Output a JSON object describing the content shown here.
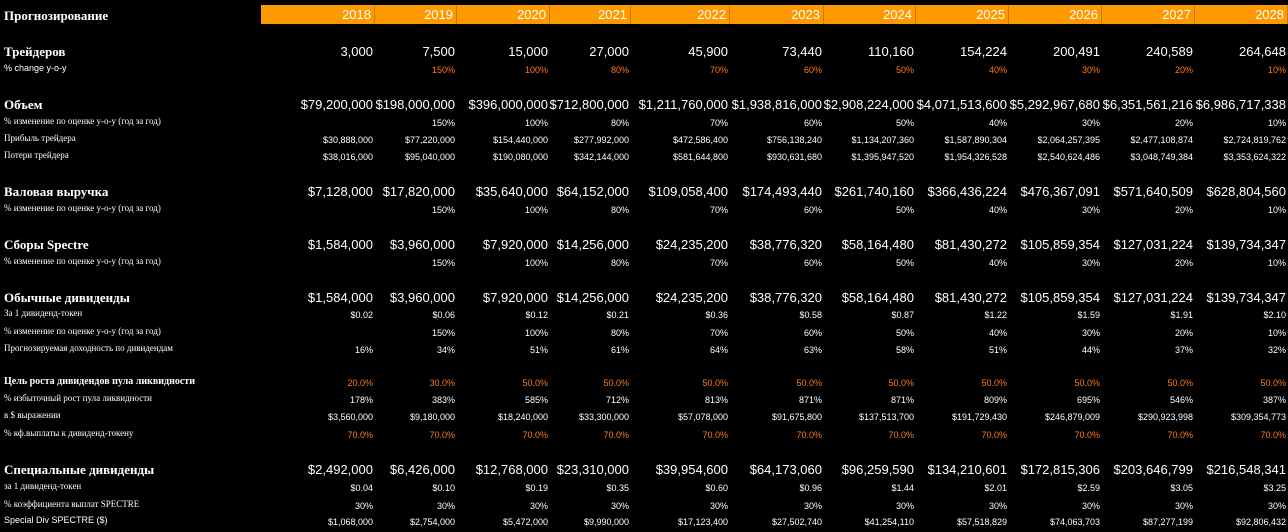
{
  "header": {
    "title": "Прогнозирование",
    "years": [
      "2018",
      "2019",
      "2020",
      "2021",
      "2022",
      "2023",
      "2024",
      "2025",
      "2026",
      "2027",
      "2028"
    ]
  },
  "sections": [
    {
      "key": "traders",
      "label": "Трейдеров",
      "style": "sect",
      "values": [
        "3,000",
        "7,500",
        "15,000",
        "27,000",
        "45,900",
        "73,440",
        "110,160",
        "154,224",
        "200,491",
        "240,589",
        "264,648"
      ]
    },
    {
      "key": "traders_change",
      "label": "% change y-o-y",
      "style": "lbl-sans",
      "tone": "orange",
      "values": [
        "",
        "150%",
        "100%",
        "80%",
        "70%",
        "60%",
        "50%",
        "40%",
        "30%",
        "20%",
        "10%"
      ]
    },
    {
      "key": "volume",
      "label": "Объем",
      "style": "sect",
      "values": [
        "$79,200,000",
        "$198,000,000",
        "$396,000,000",
        "$712,800,000",
        "$1,211,760,000",
        "$1,938,816,000",
        "$2,908,224,000",
        "$4,071,513,600",
        "$5,292,967,680",
        "$6,351,561,216",
        "$6,986,717,338"
      ]
    },
    {
      "key": "volume_change",
      "label": "% изменение по оценке y-o-y (год за год)",
      "style": "lbl-small",
      "values": [
        "",
        "150%",
        "100%",
        "80%",
        "70%",
        "60%",
        "50%",
        "40%",
        "30%",
        "20%",
        "10%"
      ]
    },
    {
      "key": "trader_profit",
      "label": "Прибыль трейдера",
      "style": "lbl-small",
      "values": [
        "$30,888,000",
        "$77,220,000",
        "$154,440,000",
        "$277,992,000",
        "$472,586,400",
        "$756,138,240",
        "$1,134,207,360",
        "$1,587,890,304",
        "$2,064,257,395",
        "$2,477,108,874",
        "$2,724,819,762"
      ]
    },
    {
      "key": "trader_loss",
      "label": "Потери трейдера",
      "style": "lbl-small",
      "values": [
        "$38,016,000",
        "$95,040,000",
        "$190,080,000",
        "$342,144,000",
        "$581,644,800",
        "$930,631,680",
        "$1,395,947,520",
        "$1,954,326,528",
        "$2,540,624,486",
        "$3,048,749,384",
        "$3,353,624,322"
      ]
    },
    {
      "key": "gross_revenue",
      "label": "Валовая выручка",
      "style": "sect",
      "values": [
        "$7,128,000",
        "$17,820,000",
        "$35,640,000",
        "$64,152,000",
        "$109,058,400",
        "$174,493,440",
        "$261,740,160",
        "$366,436,224",
        "$476,367,091",
        "$571,640,509",
        "$628,804,560"
      ]
    },
    {
      "key": "gross_change",
      "label": "% изменение по оценке y-o-y (год за год)",
      "style": "lbl-small",
      "values": [
        "",
        "150%",
        "100%",
        "80%",
        "70%",
        "60%",
        "50%",
        "40%",
        "30%",
        "20%",
        "10%"
      ]
    },
    {
      "key": "spectre_fees",
      "label": "Сборы Spectre",
      "style": "sect",
      "values": [
        "$1,584,000",
        "$3,960,000",
        "$7,920,000",
        "$14,256,000",
        "$24,235,200",
        "$38,776,320",
        "$58,164,480",
        "$81,430,272",
        "$105,859,354",
        "$127,031,224",
        "$139,734,347"
      ]
    },
    {
      "key": "fees_change",
      "label": "% изменение по оценке y-o-y (год за год)",
      "style": "lbl-small",
      "values": [
        "",
        "150%",
        "100%",
        "80%",
        "70%",
        "60%",
        "50%",
        "40%",
        "30%",
        "20%",
        "10%"
      ]
    },
    {
      "key": "regular_div",
      "label": "Обычные дивиденды",
      "style": "sect",
      "values": [
        "$1,584,000",
        "$3,960,000",
        "$7,920,000",
        "$14,256,000",
        "$24,235,200",
        "$38,776,320",
        "$58,164,480",
        "$81,430,272",
        "$105,859,354",
        "$127,031,224",
        "$139,734,347"
      ]
    },
    {
      "key": "per_token",
      "label": "За 1 дивиденд-токен",
      "style": "lbl-small",
      "values": [
        "$0.02",
        "$0.06",
        "$0.12",
        "$0.21",
        "$0.36",
        "$0.58",
        "$0.87",
        "$1.22",
        "$1.59",
        "$1.91",
        "$2.10"
      ]
    },
    {
      "key": "regdiv_change",
      "label": "% изменение по оценке y-o-y (год за год)",
      "style": "lbl-small",
      "values": [
        "",
        "150%",
        "100%",
        "80%",
        "70%",
        "60%",
        "50%",
        "40%",
        "30%",
        "20%",
        "10%"
      ]
    },
    {
      "key": "div_yield",
      "label": "Прогнозируемая доходность по дивидендам",
      "style": "lbl-small",
      "values": [
        "16%",
        "34%",
        "51%",
        "61%",
        "64%",
        "63%",
        "58%",
        "51%",
        "44%",
        "37%",
        "32%"
      ]
    },
    {
      "key": "pool_goal",
      "label": "Цель роста дивидендов пула ликвидности",
      "style": "sectsmall",
      "tone": "orange",
      "values": [
        "20.0%",
        "30.0%",
        "50.0%",
        "50.0%",
        "50.0%",
        "50.0%",
        "50.0%",
        "50.0%",
        "50.0%",
        "50.0%",
        "50.0%"
      ]
    },
    {
      "key": "excess_growth",
      "label": "% избыточный рост пула ликвидности",
      "style": "lbl-small",
      "values": [
        "178%",
        "383%",
        "585%",
        "712%",
        "813%",
        "871%",
        "871%",
        "809%",
        "695%",
        "546%",
        "387%"
      ]
    },
    {
      "key": "in_usd",
      "label": "в $ выражении",
      "style": "lbl-small",
      "values": [
        "$3,560,000",
        "$9,180,000",
        "$18,240,000",
        "$33,300,000",
        "$57,078,000",
        "$91,675,800",
        "$137,513,700",
        "$191,729,430",
        "$246,879,009",
        "$290,923,998",
        "$309,354,773"
      ]
    },
    {
      "key": "payout_ratio",
      "label": "% кф.выплаты к дивиденд-токену",
      "style": "lbl-small",
      "tone": "orange",
      "values": [
        "70.0%",
        "70.0%",
        "70.0%",
        "70.0%",
        "70.0%",
        "70.0%",
        "70.0%",
        "70.0%",
        "70.0%",
        "70.0%",
        "70.0%"
      ]
    },
    {
      "key": "special_div",
      "label": "Специальные дивиденды",
      "style": "sect",
      "values": [
        "$2,492,000",
        "$6,426,000",
        "$12,768,000",
        "$23,310,000",
        "$39,954,600",
        "$64,173,060",
        "$96,259,590",
        "$134,210,601",
        "$172,815,306",
        "$203,646,799",
        "$216,548,341"
      ]
    },
    {
      "key": "special_per_token",
      "label": "за 1 дивиденд-токен",
      "style": "lbl-small",
      "values": [
        "$0.04",
        "$0.10",
        "$0.19",
        "$0.35",
        "$0.60",
        "$0.96",
        "$1.44",
        "$2.01",
        "$2.59",
        "$3.05",
        "$3.25"
      ]
    },
    {
      "key": "spectre_coeff",
      "label": "% коэффициента выплат SPECTRE",
      "style": "lbl-small",
      "values": [
        "30%",
        "30%",
        "30%",
        "30%",
        "30%",
        "30%",
        "30%",
        "30%",
        "30%",
        "30%",
        "30%"
      ]
    },
    {
      "key": "special_div_spectre",
      "label": "Special Div SPECTRE ($)",
      "style": "lbl-sans",
      "values": [
        "$1,068,000",
        "$2,754,000",
        "$5,472,000",
        "$9,990,000",
        "$17,123,400",
        "$27,502,740",
        "$41,254,110",
        "$57,518,829",
        "$74,063,703",
        "$87,277,199",
        "$92,806,432"
      ]
    }
  ]
}
